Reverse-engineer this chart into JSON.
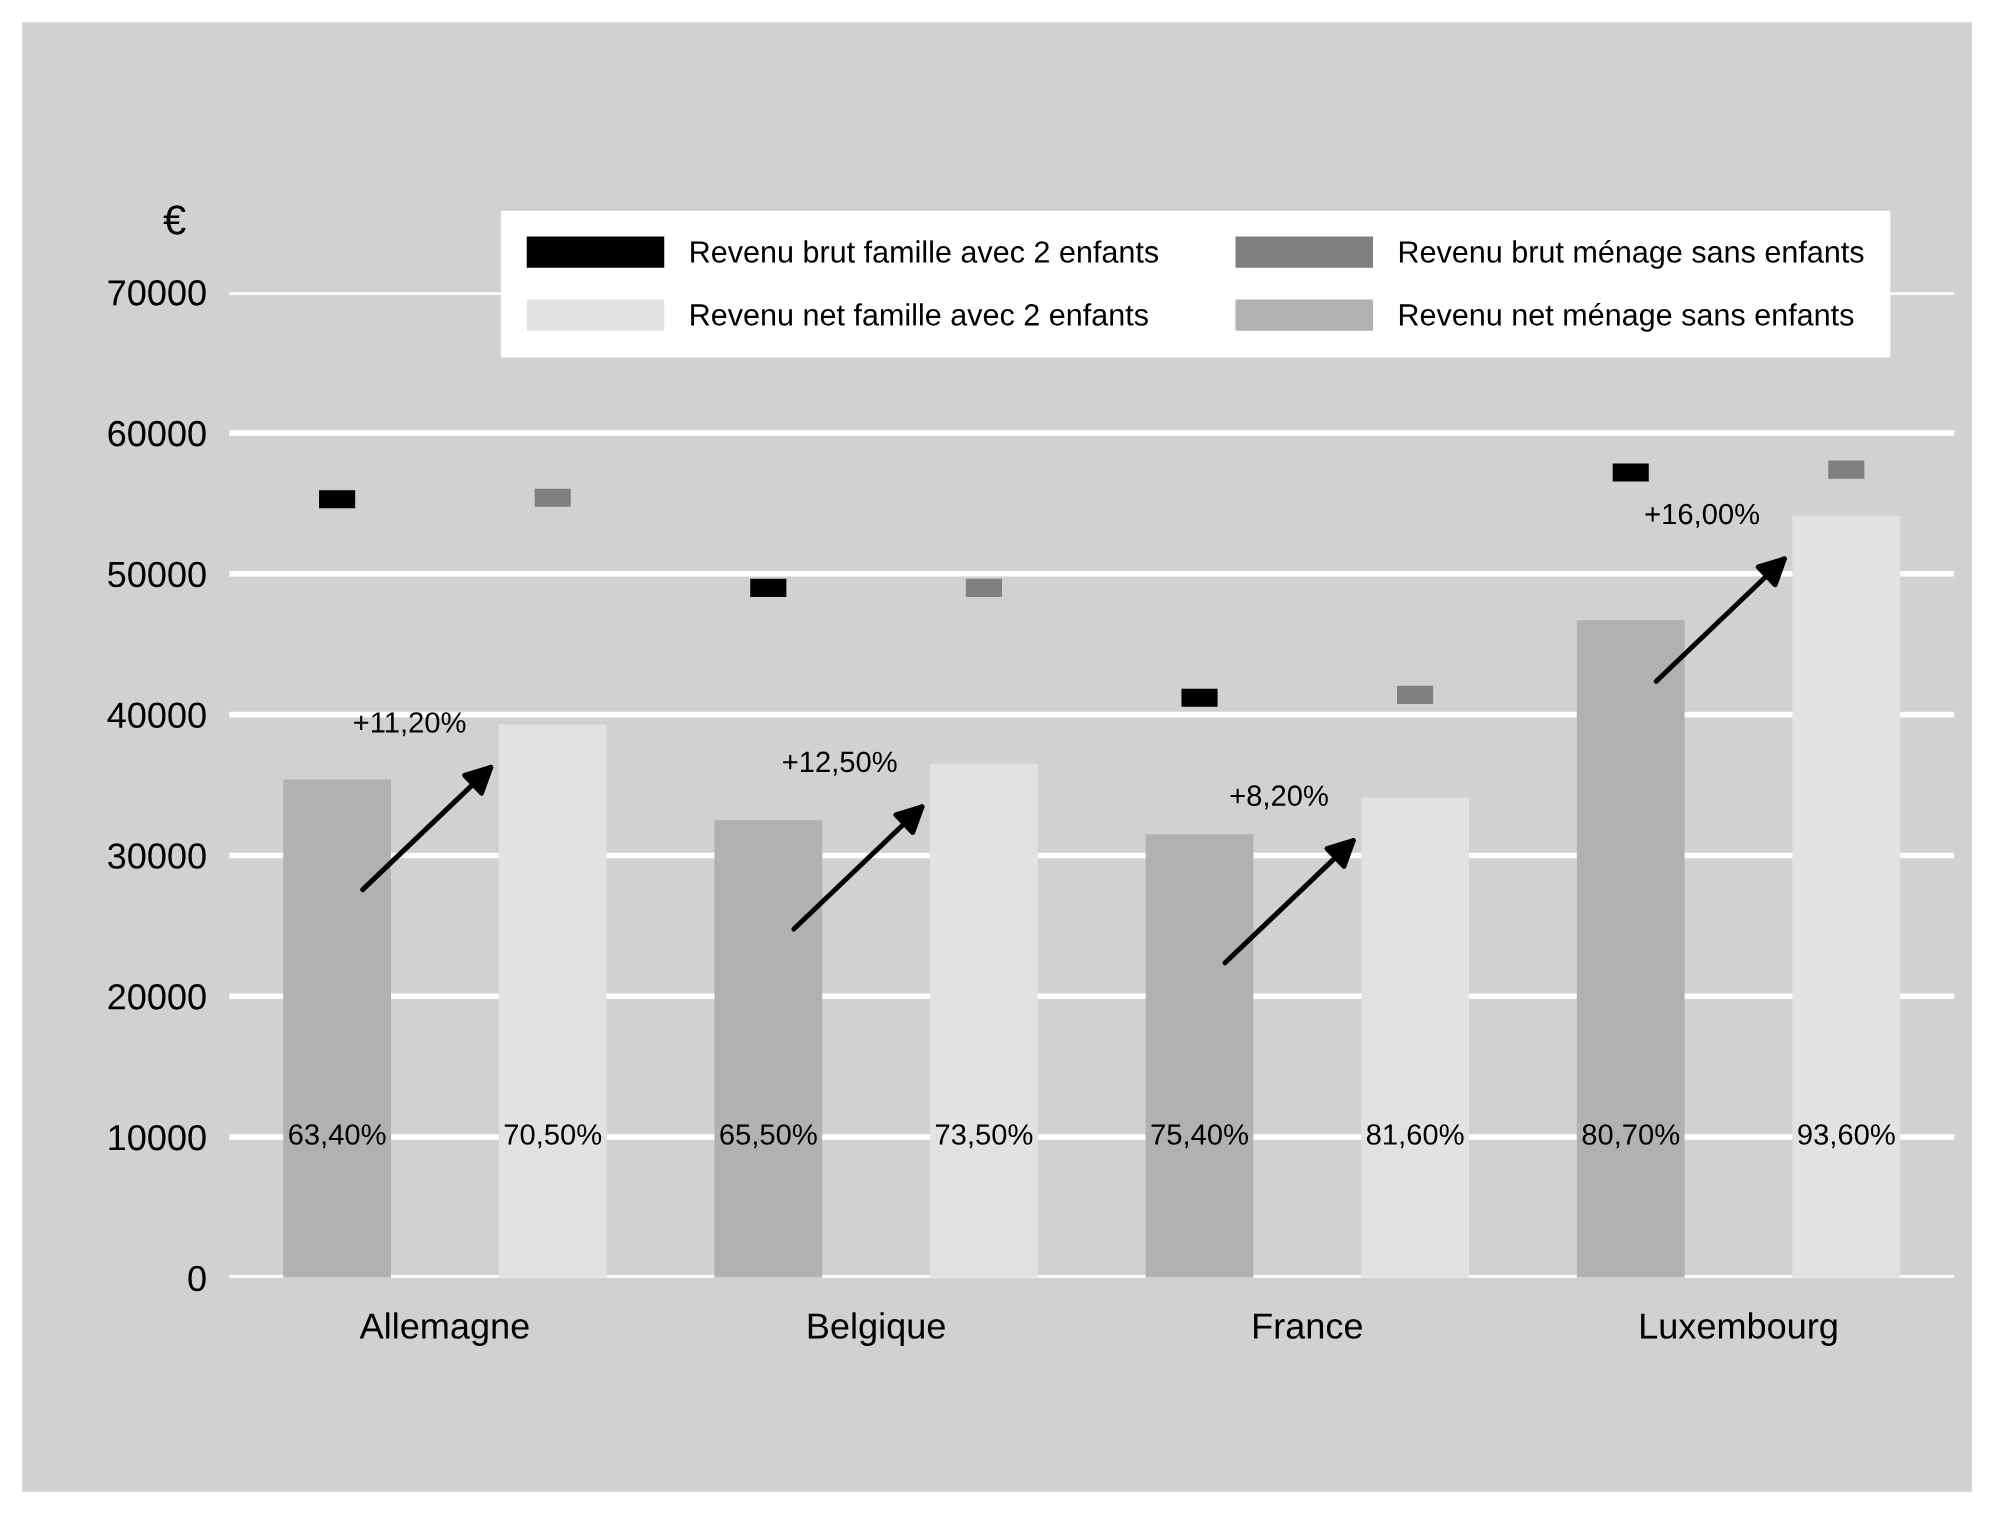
{
  "chart_data": {
    "type": "bar",
    "ylabel": "€",
    "categories": [
      null,
      null,
      null,
      null,
      null,
      null,
      null,
      null
    ],
    "series": [
      {
        "name": "Revenu net ménage sans enfants",
        "color": "#b0b1b3",
        "values": [
          35400,
          null,
          32500,
          null,
          31500,
          null,
          46700,
          null
        ]
      },
      {
        "name": "Revenu net famille avec 2 enfants",
        "color": "#e2e2e2",
        "values": [
          null,
          39300,
          null,
          36500,
          null,
          34100,
          null,
          54100
        ]
      },
      {
        "name": "Revenu brut famille avec 2 enfants",
        "type": "scatter",
        "color": "#000000",
        "values": [
          55300,
          null,
          49000,
          null,
          41200,
          null,
          57200,
          null
        ]
      },
      {
        "name": "Revenu brut ménage sans enfants",
        "type": "scatter",
        "color": "#7f7f7f",
        "values": [
          null,
          55400,
          null,
          49000,
          null,
          41400,
          null,
          57400
        ]
      }
    ],
    "annotations": [
      "Allemagne",
      "Belgique",
      "France",
      "Luxembourg",
      "+11,20%",
      "+12,50%",
      "+8,20%",
      "+16,00%",
      "63,40%",
      "70,50%",
      "65,50%",
      "73,50%",
      "75,40%",
      "81,60%",
      "80,70%",
      "93,60%"
    ],
    "ylim": [
      0,
      70000
    ],
    "yticks": [
      0,
      10000,
      20000,
      30000,
      40000,
      50000,
      60000,
      70000
    ],
    "grid": "y",
    "legend": "top right"
  }
}
